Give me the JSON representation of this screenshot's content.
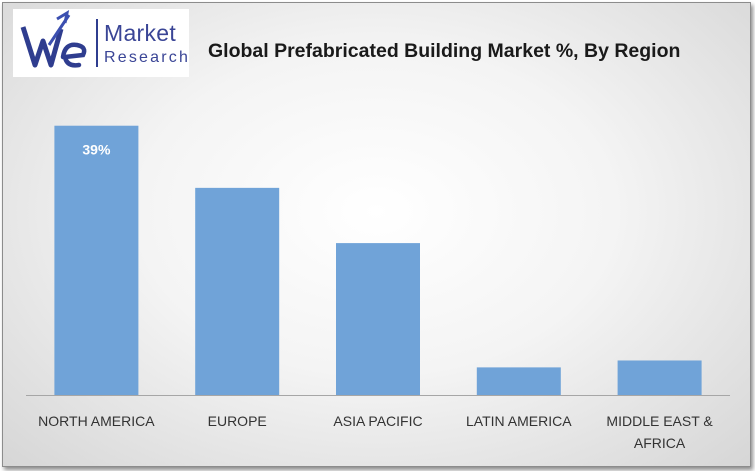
{
  "logo": {
    "line1": "Market",
    "line2": "Research"
  },
  "chart_data": {
    "type": "bar",
    "title": "Global Prefabricated Building Market %, By Region",
    "categories": [
      [
        "NORTH AMERICA"
      ],
      [
        "EUROPE"
      ],
      [
        "ASIA PACIFIC"
      ],
      [
        "LATIN AMERICA"
      ],
      [
        "MIDDLE EAST &",
        "AFRICA"
      ]
    ],
    "values": [
      39,
      30,
      22,
      4,
      5
    ],
    "data_labels": [
      "39%",
      "",
      "",
      "",
      ""
    ],
    "ylim": [
      0,
      42
    ],
    "grid": false,
    "legend": "none",
    "bar_color": "#70a3d8"
  }
}
